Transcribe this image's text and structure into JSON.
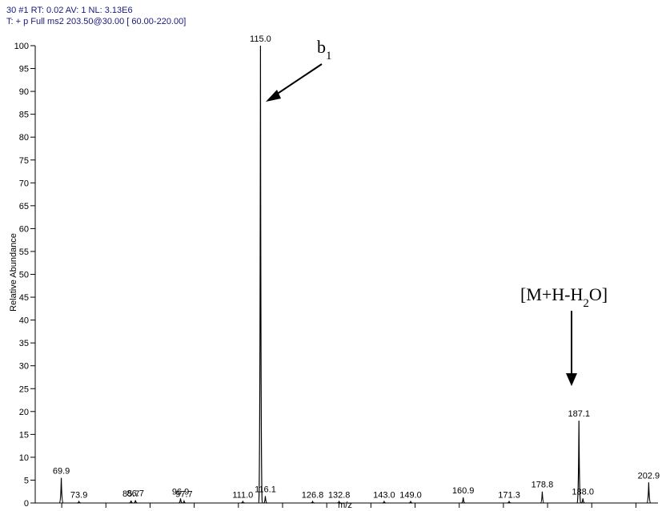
{
  "chart_data": {
    "type": "spectrum",
    "header": [
      "30 #1  RT: 0.02  AV: 1  NL: 3.13E6",
      "T: + p Full ms2 203.50@30.00 [ 60.00-220.00]"
    ],
    "xlabel": "m/z",
    "ylabel": "Relative Abundance",
    "xlim": [
      64,
      205
    ],
    "ylim": [
      0,
      100
    ],
    "xticks": [
      70,
      80,
      90,
      100,
      110,
      120,
      130,
      140,
      150,
      160,
      170,
      180,
      190,
      200
    ],
    "yticks": [
      0,
      5,
      10,
      15,
      20,
      25,
      30,
      35,
      40,
      45,
      50,
      55,
      60,
      65,
      70,
      75,
      80,
      85,
      90,
      95,
      100
    ],
    "x": [
      69.9,
      73.9,
      85.7,
      86.7,
      96.9,
      97.7,
      111.0,
      115.0,
      116.1,
      126.8,
      132.8,
      143.0,
      149.0,
      160.9,
      171.3,
      178.8,
      187.1,
      188.0,
      202.9
    ],
    "x_labels": [
      "69.9",
      "73.9",
      "85.7",
      "86.7",
      "96.9",
      "97.7",
      "111.0",
      "115.0",
      "116.1",
      "126.8",
      "132.8",
      "143.0",
      "149.0",
      "160.9",
      "171.3",
      "178.8",
      "187.1",
      "188.0",
      "202.9"
    ],
    "values": [
      5.5,
      0.3,
      0.5,
      0.6,
      1,
      0.4,
      0.3,
      100,
      1.5,
      0.3,
      0.3,
      0.3,
      0.3,
      1.2,
      0.3,
      2.5,
      18,
      1,
      4.5
    ],
    "color": "#000000",
    "annotations": [
      {
        "parts": [
          "b",
          "1"
        ]
      },
      {
        "parts": [
          "[M+H-H",
          "2",
          "O]"
        ]
      }
    ]
  }
}
